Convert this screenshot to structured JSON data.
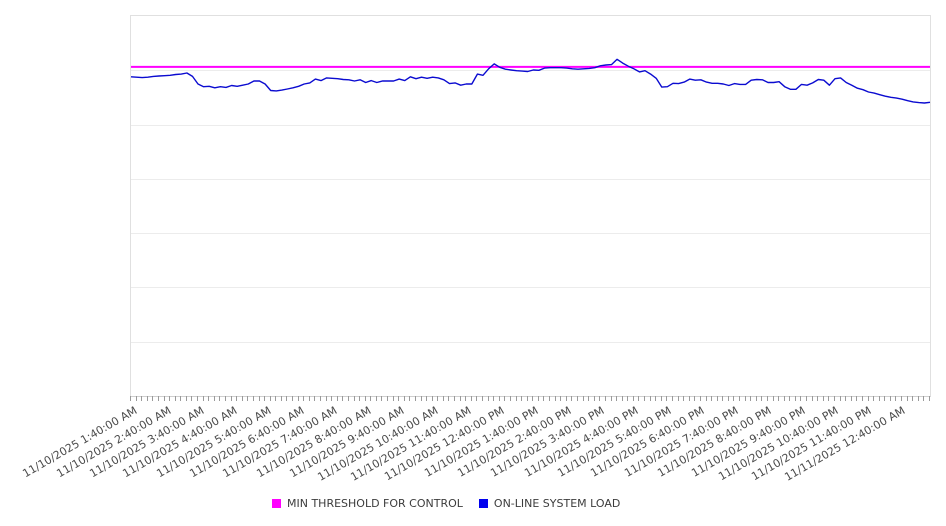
{
  "chart_data": {
    "type": "line",
    "title": "",
    "xlabel": "",
    "ylabel": "",
    "ylim": [
      0,
      100
    ],
    "y_axis_labels_visible": false,
    "grid": "horizontal",
    "grid_intervals": 7,
    "x_label_rotation_deg": -30,
    "legend_position": "bottom-center",
    "x_tick_labels": [
      "11/10/2025 1:40:00 AM",
      "11/10/2025 2:40:00 AM",
      "11/10/2025 3:40:00 AM",
      "11/10/2025 4:40:00 AM",
      "11/10/2025 5:40:00 AM",
      "11/10/2025 6:40:00 AM",
      "11/10/2025 7:40:00 AM",
      "11/10/2025 8:40:00 AM",
      "11/10/2025 9:40:00 AM",
      "11/10/2025 10:40:00 AM",
      "11/10/2025 11:40:00 AM",
      "11/10/2025 12:40:00 PM",
      "11/10/2025 1:40:00 PM",
      "11/10/2025 2:40:00 PM",
      "11/10/2025 3:40:00 PM",
      "11/10/2025 4:40:00 PM",
      "11/10/2025 5:40:00 PM",
      "11/10/2025 6:40:00 PM",
      "11/10/2025 7:40:00 PM",
      "11/10/2025 8:40:00 PM",
      "11/10/2025 9:40:00 PM",
      "11/10/2025 10:40:00 PM",
      "11/10/2025 11:40:00 PM",
      "11/11/2025 12:40:00 AM"
    ],
    "minor_tick_count": 144,
    "series": [
      {
        "name": "MIN THRESHOLD FOR CONTROL",
        "type": "constant-threshold",
        "color": "#ff00ff",
        "value": 86.6
      },
      {
        "name": "ON-LINE SYSTEM LOAD",
        "type": "line",
        "color": "#0b0bd0",
        "values": [
          84.0,
          83.9,
          83.8,
          83.9,
          84.1,
          84.2,
          84.3,
          84.4,
          84.6,
          84.7,
          85.0,
          84.1,
          82.1,
          81.4,
          81.5,
          81.1,
          81.4,
          81.2,
          81.7,
          81.5,
          81.8,
          82.1,
          82.9,
          82.9,
          82.1,
          80.4,
          80.3,
          80.5,
          80.8,
          81.1,
          81.5,
          82.1,
          82.4,
          83.4,
          83.0,
          83.7,
          83.6,
          83.5,
          83.3,
          83.2,
          82.9,
          83.2,
          82.5,
          83.0,
          82.5,
          82.9,
          82.9,
          82.9,
          83.4,
          83.0,
          84.0,
          83.5,
          83.9,
          83.6,
          83.9,
          83.7,
          83.2,
          82.2,
          82.4,
          81.8,
          82.1,
          82.1,
          84.7,
          84.4,
          86.1,
          87.4,
          86.5,
          86.0,
          85.8,
          85.6,
          85.5,
          85.4,
          85.8,
          85.7,
          86.3,
          86.4,
          86.4,
          86.4,
          86.3,
          86.1,
          86.0,
          86.1,
          86.2,
          86.4,
          86.9,
          87.1,
          87.2,
          88.6,
          87.6,
          86.8,
          86.1,
          85.3,
          85.6,
          84.7,
          83.6,
          81.3,
          81.4,
          82.3,
          82.2,
          82.6,
          83.4,
          83.1,
          83.2,
          82.6,
          82.3,
          82.3,
          82.1,
          81.7,
          82.2,
          82.0,
          82.0,
          83.1,
          83.3,
          83.2,
          82.5,
          82.5,
          82.7,
          81.4,
          80.7,
          80.7,
          82.0,
          81.8,
          82.4,
          83.3,
          83.1,
          81.8,
          83.5,
          83.7,
          82.5,
          81.8,
          81.0,
          80.6,
          80.0,
          79.7,
          79.3,
          78.9,
          78.6,
          78.4,
          78.1,
          77.7,
          77.4,
          77.2,
          77.1,
          77.3
        ]
      }
    ]
  }
}
